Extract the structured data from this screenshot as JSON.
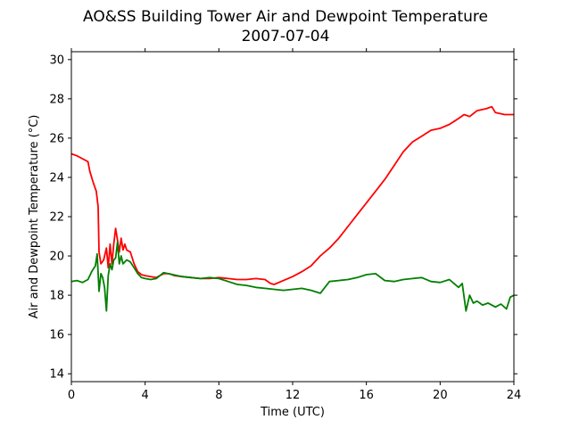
{
  "chart_data": {
    "type": "line",
    "title": "AO&SS Building Tower Air and Dewpoint Temperature",
    "subtitle": "2007-07-04",
    "xlabel": "Time (UTC)",
    "ylabel": "Air and Dewpoint Temperature (°C)",
    "xlim": [
      0,
      24
    ],
    "ylim": [
      13.6,
      30.4
    ],
    "xticks": [
      0,
      4,
      8,
      12,
      16,
      20,
      24
    ],
    "xtick_labels": [
      "0",
      "4",
      "8",
      "12",
      "16",
      "20",
      "24"
    ],
    "yticks": [
      14,
      16,
      18,
      20,
      22,
      24,
      26,
      28,
      30
    ],
    "ytick_labels": [
      "14",
      "16",
      "18",
      "20",
      "22",
      "24",
      "26",
      "28",
      "30"
    ],
    "grid": false,
    "legend": "none",
    "series": [
      {
        "color": "#ff0000",
        "x": [
          0,
          0.3,
          0.6,
          0.9,
          1.0,
          1.2,
          1.35,
          1.45,
          1.5,
          1.6,
          1.75,
          1.9,
          2.0,
          2.1,
          2.2,
          2.3,
          2.4,
          2.5,
          2.6,
          2.7,
          2.8,
          2.9,
          3.0,
          3.2,
          3.4,
          3.6,
          3.8,
          4.0,
          4.3,
          4.6,
          5.0,
          5.3,
          5.6,
          6.0,
          6.5,
          7.0,
          7.5,
          8.0,
          8.5,
          9.0,
          9.5,
          10.0,
          10.5,
          10.8,
          11.0,
          11.5,
          12.0,
          12.5,
          13.0,
          13.5,
          14.0,
          14.5,
          15.0,
          15.5,
          16.0,
          16.5,
          17.0,
          17.5,
          18.0,
          18.5,
          19.0,
          19.5,
          20.0,
          20.5,
          21.0,
          21.3,
          21.6,
          22.0,
          22.5,
          22.8,
          23.0,
          23.5,
          24.0
        ],
        "y": [
          25.2,
          25.1,
          24.95,
          24.8,
          24.3,
          23.7,
          23.3,
          22.5,
          20.2,
          19.6,
          19.8,
          20.4,
          19.4,
          20.6,
          19.6,
          20.6,
          21.4,
          20.8,
          20.2,
          20.9,
          20.3,
          20.6,
          20.3,
          20.2,
          19.6,
          19.2,
          19.05,
          19.0,
          18.95,
          18.9,
          19.1,
          19.1,
          19.0,
          18.95,
          18.9,
          18.85,
          18.85,
          18.9,
          18.85,
          18.8,
          18.8,
          18.85,
          18.8,
          18.6,
          18.55,
          18.75,
          18.95,
          19.2,
          19.5,
          20.0,
          20.4,
          20.9,
          21.5,
          22.1,
          22.7,
          23.3,
          23.9,
          24.6,
          25.3,
          25.8,
          26.1,
          26.4,
          26.5,
          26.7,
          27.0,
          27.2,
          27.1,
          27.4,
          27.5,
          27.6,
          27.3,
          27.2,
          27.2
        ]
      },
      {
        "color": "#008000",
        "x": [
          0,
          0.3,
          0.6,
          0.9,
          1.1,
          1.3,
          1.4,
          1.5,
          1.6,
          1.7,
          1.8,
          1.9,
          2.0,
          2.1,
          2.2,
          2.3,
          2.4,
          2.5,
          2.6,
          2.7,
          2.8,
          3.0,
          3.2,
          3.4,
          3.6,
          3.8,
          4.0,
          4.3,
          4.6,
          5.0,
          5.5,
          6.0,
          6.5,
          7.0,
          7.5,
          8.0,
          8.5,
          9.0,
          9.5,
          10.0,
          10.5,
          11.0,
          11.5,
          12.0,
          12.5,
          13.0,
          13.5,
          14.0,
          14.5,
          15.0,
          15.5,
          16.0,
          16.5,
          17.0,
          17.5,
          18.0,
          18.5,
          19.0,
          19.5,
          20.0,
          20.5,
          21.0,
          21.2,
          21.4,
          21.6,
          21.8,
          22.0,
          22.3,
          22.6,
          23.0,
          23.3,
          23.6,
          23.8,
          24.0
        ],
        "y": [
          18.7,
          18.75,
          18.65,
          18.8,
          19.2,
          19.5,
          20.1,
          18.2,
          19.1,
          18.9,
          18.4,
          17.2,
          19.0,
          19.6,
          19.3,
          19.8,
          19.9,
          20.7,
          19.6,
          20.0,
          19.6,
          19.8,
          19.7,
          19.4,
          19.1,
          18.9,
          18.85,
          18.8,
          18.85,
          19.15,
          19.05,
          18.95,
          18.9,
          18.85,
          18.9,
          18.85,
          18.7,
          18.55,
          18.5,
          18.4,
          18.35,
          18.3,
          18.25,
          18.3,
          18.35,
          18.25,
          18.1,
          18.7,
          18.75,
          18.8,
          18.9,
          19.05,
          19.1,
          18.75,
          18.7,
          18.8,
          18.85,
          18.9,
          18.7,
          18.65,
          18.8,
          18.4,
          18.6,
          17.2,
          18.0,
          17.6,
          17.7,
          17.5,
          17.6,
          17.4,
          17.55,
          17.3,
          17.9,
          18.0
        ]
      }
    ]
  }
}
